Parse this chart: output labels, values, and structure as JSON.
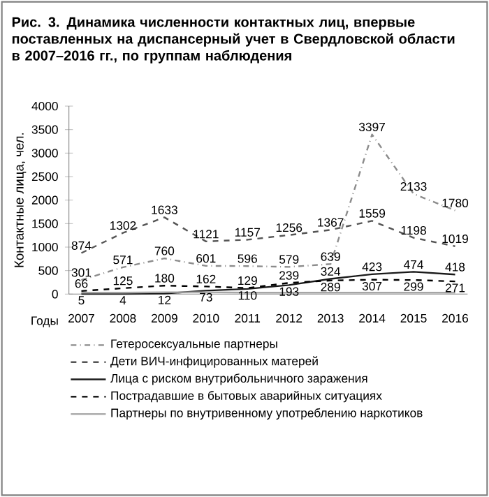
{
  "chart_data": {
    "type": "line",
    "title": "Рис. 3. Динамика численности контактных лиц, впервые поставленных на диспансерный учет в Свердловской области в 2007–2016 гг., по группам наблюдения",
    "xlabel": "Годы",
    "ylabel": "Контактные лица, чел.",
    "categories": [
      "2007",
      "2008",
      "2009",
      "2010",
      "2011",
      "2012",
      "2013",
      "2014",
      "2015",
      "2016"
    ],
    "ylim": [
      0,
      4000
    ],
    "yticks": [
      0,
      500,
      1000,
      1500,
      2000,
      2500,
      3000,
      3500,
      4000
    ],
    "grid": false,
    "legend": "bottom",
    "marker": "none",
    "series": [
      {
        "name": "Гетеросексуальные партнеры",
        "color": "#8c8c8c",
        "line_style": "dashdot",
        "values": [
          301,
          571,
          760,
          601,
          596,
          579,
          639,
          3397,
          2133,
          1780
        ],
        "value_labels": [
          "301",
          "571",
          "760",
          "601",
          "596",
          "579",
          "639",
          "3397",
          "2133",
          "1780"
        ]
      },
      {
        "name": "Дети ВИЧ-инфицированных матерей",
        "color": "#555555",
        "line_style": "dashed",
        "values": [
          874,
          1302,
          1633,
          1121,
          1157,
          1256,
          1367,
          1559,
          1198,
          1019
        ],
        "value_labels": [
          "874",
          "1302",
          "1633",
          "1121",
          "1157",
          "1256",
          "1367",
          "1559",
          "1198",
          "1019"
        ]
      },
      {
        "name": "Лица с риском внутрибольничного заражения",
        "color": "#1a1a1a",
        "line_style": "solid",
        "values": [
          5,
          4,
          12,
          73,
          110,
          193,
          324,
          423,
          474,
          418
        ],
        "value_labels": [
          "5",
          "4",
          "12",
          "73",
          "110",
          "193",
          "324",
          "423",
          "474",
          "418"
        ]
      },
      {
        "name": "Пострадавшие в бытовых аварийных ситуациях",
        "color": "#000000",
        "line_style": "dashed",
        "values": [
          66,
          125,
          180,
          162,
          129,
          239,
          289,
          307,
          299,
          271
        ],
        "value_labels": [
          "66",
          "125",
          "180",
          "162",
          "129",
          "239",
          "289",
          "307",
          "299",
          "271"
        ]
      },
      {
        "name": "Партнеры по внутривенному употреблению наркотиков",
        "color": "#a6a6a6",
        "line_style": "solid",
        "values": [
          30,
          30,
          40,
          40,
          30,
          30,
          30,
          30,
          30,
          30
        ]
      }
    ]
  }
}
